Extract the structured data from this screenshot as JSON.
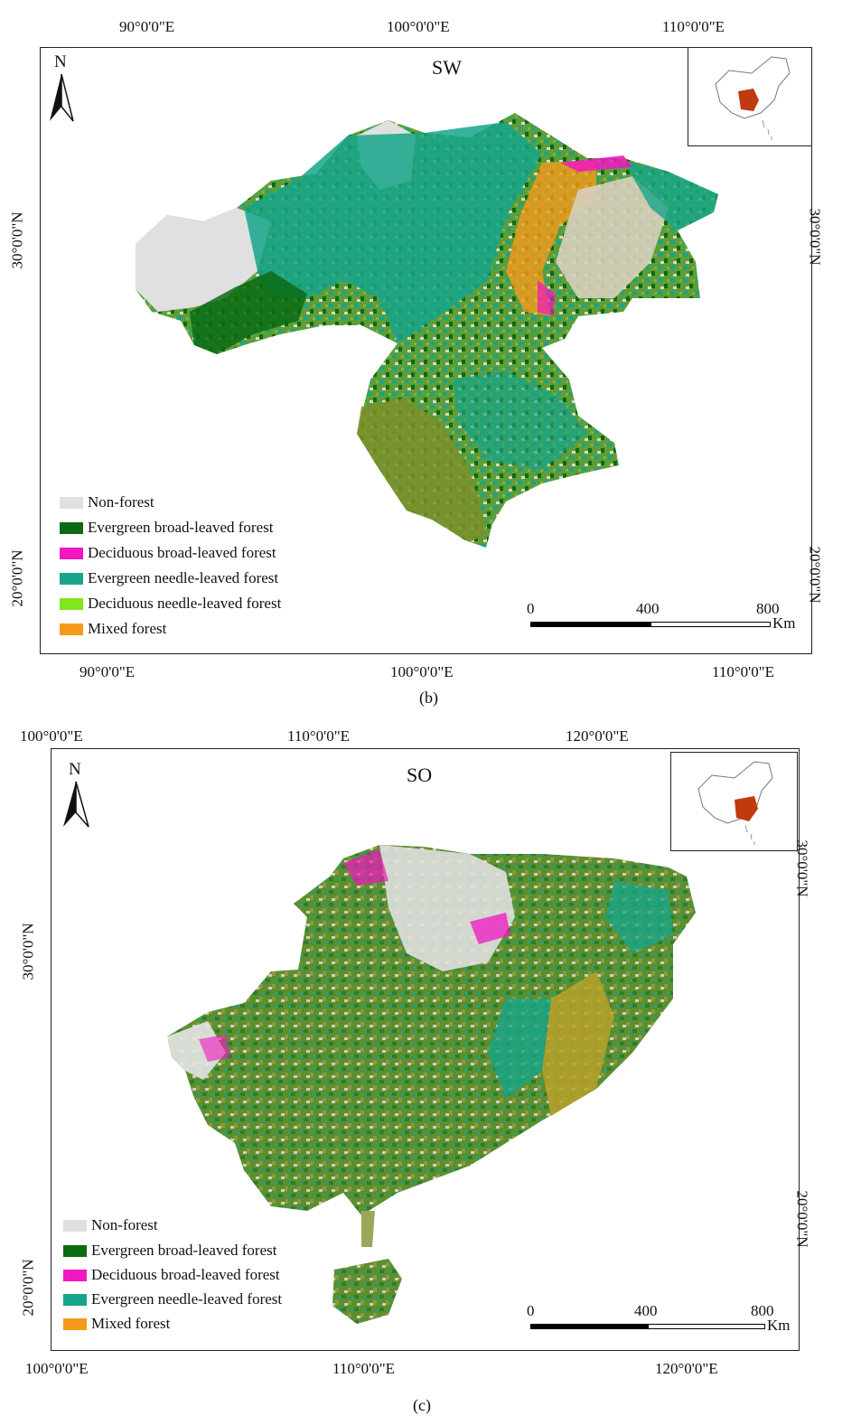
{
  "colors": {
    "non_forest": "#e0e0e0",
    "evergreen_broad": "#0b6b12",
    "deciduous_broad": "#f016c0",
    "evergreen_needle": "#16a58a",
    "deciduous_needle": "#7ee81a",
    "mixed": "#f59a1a",
    "inset_highlight": "#c0390f"
  },
  "panel_b": {
    "title": "SW",
    "letter": "(b)",
    "north": "N",
    "top_lon": [
      "90°0'0\"E",
      "100°0'0\"E",
      "110°0'0\"E"
    ],
    "bottom_lon": [
      "90°0'0\"E",
      "100°0'0\"E",
      "110°0'0\"E"
    ],
    "left_lat": [
      "30°0'0\"N",
      "20°0'0\"N"
    ],
    "right_lat": [
      "30°0'0\"N",
      "20°0'0\"N"
    ],
    "legend": [
      {
        "label": "Non-forest",
        "color_key": "non_forest"
      },
      {
        "label": "Evergreen broad-leaved forest",
        "color_key": "evergreen_broad"
      },
      {
        "label": "Deciduous broad-leaved forest",
        "color_key": "deciduous_broad"
      },
      {
        "label": "Evergreen needle-leaved forest",
        "color_key": "evergreen_needle"
      },
      {
        "label": "Deciduous needle-leaved forest",
        "color_key": "deciduous_needle"
      },
      {
        "label": "Mixed forest",
        "color_key": "mixed"
      }
    ],
    "scale": {
      "ticks": [
        "0",
        "400",
        "800"
      ],
      "unit": "Km"
    }
  },
  "panel_c": {
    "title": "SO",
    "letter": "(c)",
    "north": "N",
    "top_lon": [
      "100°0'0\"E",
      "110°0'0\"E",
      "120°0'0\"E"
    ],
    "bottom_lon": [
      "100°0'0\"E",
      "110°0'0\"E",
      "120°0'0\"E"
    ],
    "left_lat": [
      "30°0'0\"N",
      "20°0'0\"N"
    ],
    "right_lat": [
      "30°0'0\"N",
      "20°0'0\"N"
    ],
    "legend": [
      {
        "label": "Non-forest",
        "color_key": "non_forest"
      },
      {
        "label": "Evergreen broad-leaved forest",
        "color_key": "evergreen_broad"
      },
      {
        "label": "Deciduous broad-leaved forest",
        "color_key": "deciduous_broad"
      },
      {
        "label": "Evergreen needle-leaved forest",
        "color_key": "evergreen_needle"
      },
      {
        "label": "Mixed forest",
        "color_key": "mixed"
      }
    ],
    "scale": {
      "ticks": [
        "0",
        "400",
        "800"
      ],
      "unit": "Km"
    }
  }
}
